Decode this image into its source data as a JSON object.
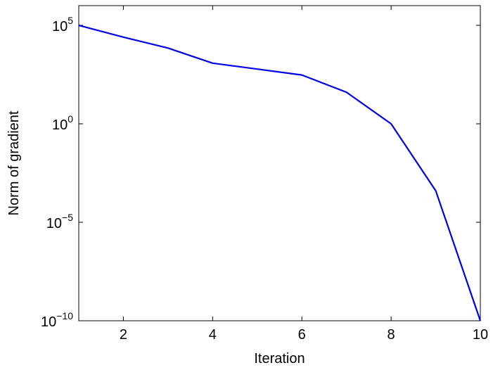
{
  "chart_data": {
    "type": "line",
    "title": "",
    "xlabel": "Iteration",
    "ylabel": "Norm of gradient",
    "xlim": [
      1,
      10
    ],
    "ylim": [
      1e-10,
      1000000.0
    ],
    "yscale": "log",
    "grid": false,
    "legend": "none",
    "x_ticks": [
      2,
      4,
      6,
      8,
      10
    ],
    "x_tick_labels": [
      "2",
      "4",
      "6",
      "8",
      "10"
    ],
    "y_ticks": [
      100000.0,
      1,
      1e-05,
      1e-10
    ],
    "y_tick_labels": [
      {
        "base": "10",
        "exp": "5"
      },
      {
        "base": "10",
        "exp": "0"
      },
      {
        "base": "10",
        "exp": "−5"
      },
      {
        "base": "10",
        "exp": "−10"
      }
    ],
    "series": [
      {
        "color": "#0000e6",
        "x": [
          1,
          2,
          3,
          4,
          5,
          6,
          7,
          8,
          9,
          10
        ],
        "y": [
          100000.0,
          25000.0,
          7000.0,
          1200.0,
          600.0,
          300.0,
          40.0,
          1,
          0.0004,
          1e-10
        ]
      }
    ]
  }
}
